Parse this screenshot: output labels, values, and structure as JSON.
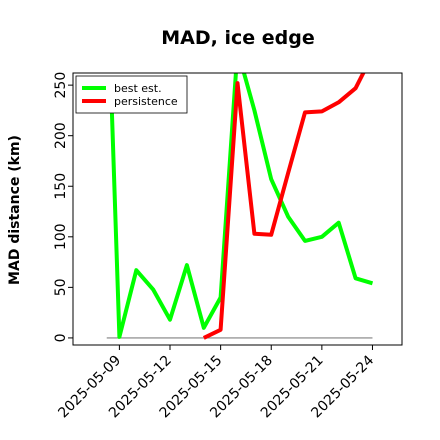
{
  "chart_data": {
    "type": "line",
    "title": "MAD, ice edge",
    "xlabel": "",
    "ylabel": "MAD distance (km)",
    "xlim": [
      "2025-05-06 06:00",
      "2025-05-25 18:00"
    ],
    "ylim": [
      -7,
      262
    ],
    "yticks": [
      0,
      50,
      100,
      150,
      200,
      250
    ],
    "xticks": [
      "2025-05-09",
      "2025-05-12",
      "2025-05-15",
      "2025-05-18",
      "2025-05-21",
      "2025-05-24"
    ],
    "grid": false,
    "legend": "top-left",
    "series": [
      {
        "name": "best est.",
        "color": "#00ff00",
        "x": [
          "2025-05-08 12:00",
          "2025-05-09 00:00",
          "2025-05-10 00:00",
          "2025-05-11 00:00",
          "2025-05-12 00:00",
          "2025-05-13 00:00",
          "2025-05-14 00:00",
          "2025-05-15 00:00",
          "2025-05-16 00:00",
          "2025-05-17 00:00",
          "2025-05-18 00:00",
          "2025-05-19 00:00",
          "2025-05-20 00:00",
          "2025-05-21 00:00",
          "2025-05-22 00:00",
          "2025-05-23 00:00",
          "2025-05-24 00:00"
        ],
        "y": [
          250,
          1,
          67,
          48,
          18,
          72,
          10,
          40,
          285,
          225,
          157,
          120,
          96,
          100,
          114,
          59,
          54
        ]
      },
      {
        "name": "persistence",
        "color": "#ff0000",
        "x": [
          "2025-05-14 00:00",
          "2025-05-15 00:00",
          "2025-05-16 00:00",
          "2025-05-17 00:00",
          "2025-05-18 00:00",
          "2025-05-19 00:00",
          "2025-05-20 00:00",
          "2025-05-21 00:00",
          "2025-05-22 00:00",
          "2025-05-23 00:00",
          "2025-05-24 00:00"
        ],
        "y": [
          0,
          8,
          252,
          103,
          102,
          163,
          223,
          224,
          233,
          247,
          280
        ]
      }
    ],
    "zero_line": {
      "color": "#808080",
      "x": [
        "2025-05-08 06:00",
        "2025-05-24 00:00"
      ],
      "y": 0
    }
  }
}
